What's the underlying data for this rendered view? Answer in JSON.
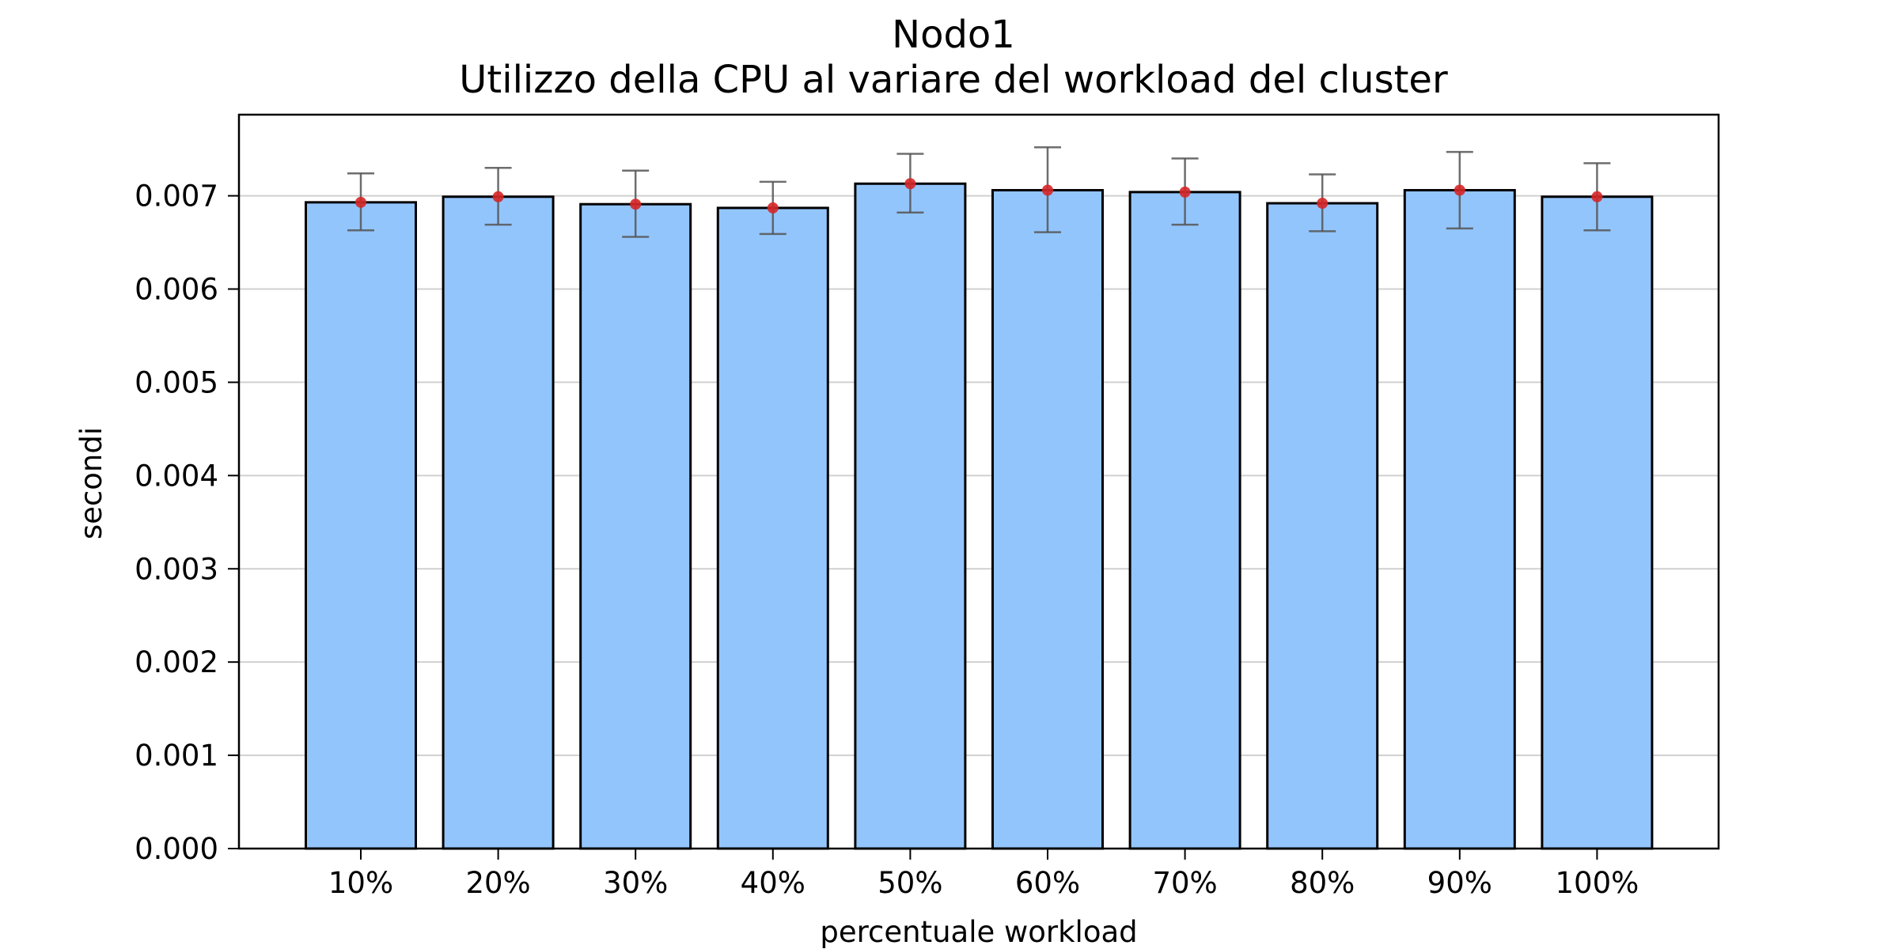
{
  "chart_data": {
    "type": "bar",
    "title": "Nodo1",
    "subtitle": "Utilizzo della CPU al variare del workload del cluster",
    "xlabel": "percentuale workload",
    "ylabel": "secondi",
    "categories": [
      "10%",
      "20%",
      "30%",
      "40%",
      "50%",
      "60%",
      "70%",
      "80%",
      "90%",
      "100%"
    ],
    "values": [
      0.00693,
      0.00699,
      0.00691,
      0.00687,
      0.00713,
      0.00706,
      0.00704,
      0.00692,
      0.00706,
      0.00699
    ],
    "error_low": [
      0.00663,
      0.00669,
      0.00656,
      0.00659,
      0.00682,
      0.00661,
      0.00669,
      0.00662,
      0.00665,
      0.00663
    ],
    "error_high": [
      0.00724,
      0.0073,
      0.00727,
      0.00715,
      0.00745,
      0.00752,
      0.0074,
      0.00723,
      0.00747,
      0.00735
    ],
    "yticks": [
      "0.000",
      "0.001",
      "0.002",
      "0.003",
      "0.004",
      "0.005",
      "0.006",
      "0.007"
    ],
    "ylim": [
      0,
      0.00787
    ],
    "grid": "horizontal",
    "colors": {
      "bar_fill": "#93c5fd",
      "bar_edge": "#000000",
      "error_bar": "#555555",
      "mean_marker": "#d62728",
      "grid": "#d0d0d0"
    }
  }
}
